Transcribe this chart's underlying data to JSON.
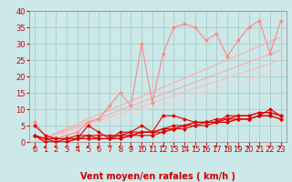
{
  "background_color": "#cce8e8",
  "grid_color": "#aacccc",
  "xlabel": "Vent moyen/en rafales ( km/h )",
  "xlabel_color": "#cc0000",
  "xlabel_fontsize": 7,
  "tick_color": "#cc0000",
  "tick_fontsize": 6,
  "ylim": [
    -6,
    42
  ],
  "ylim_plot": [
    0,
    40
  ],
  "xlim": [
    -0.5,
    23.5
  ],
  "yticks": [
    0,
    5,
    10,
    15,
    20,
    25,
    30,
    35,
    40
  ],
  "xticks": [
    0,
    1,
    2,
    3,
    4,
    5,
    6,
    7,
    8,
    9,
    10,
    11,
    12,
    13,
    14,
    15,
    16,
    17,
    18,
    19,
    20,
    21,
    22,
    23
  ],
  "series": [
    {
      "x": [
        0,
        1,
        2,
        3,
        4,
        5,
        6,
        7,
        8,
        9,
        10,
        11,
        12,
        13,
        14,
        15,
        16,
        17,
        18,
        19,
        20,
        21,
        22,
        23
      ],
      "y": [
        6,
        2,
        1,
        2,
        3,
        6,
        7,
        11,
        15,
        11,
        30,
        12,
        27,
        35,
        36,
        35,
        31,
        33,
        26,
        31,
        35,
        37,
        27,
        37
      ],
      "color": "#ff8888",
      "alpha": 1.0,
      "lw": 0.8,
      "marker": "D",
      "ms": 1.5,
      "zorder": 3
    },
    {
      "x": [
        0,
        23
      ],
      "y": [
        0,
        32
      ],
      "color": "#ffaaaa",
      "alpha": 1.0,
      "lw": 0.8,
      "marker": null,
      "ms": 0,
      "zorder": 2
    },
    {
      "x": [
        0,
        23
      ],
      "y": [
        0,
        28
      ],
      "color": "#ffaaaa",
      "alpha": 1.0,
      "lw": 0.8,
      "marker": null,
      "ms": 0,
      "zorder": 2
    },
    {
      "x": [
        0,
        23
      ],
      "y": [
        0,
        25
      ],
      "color": "#ffbbbb",
      "alpha": 1.0,
      "lw": 0.8,
      "marker": null,
      "ms": 0,
      "zorder": 2
    },
    {
      "x": [
        0,
        23
      ],
      "y": [
        0,
        22
      ],
      "color": "#ffcccc",
      "alpha": 1.0,
      "lw": 0.8,
      "marker": null,
      "ms": 0,
      "zorder": 2
    },
    {
      "x": [
        0,
        1,
        2,
        3,
        4,
        5,
        6,
        7,
        8,
        9,
        10,
        11,
        12,
        13,
        14,
        15,
        16,
        17,
        18,
        19,
        20,
        21,
        22,
        23
      ],
      "y": [
        5,
        2,
        1,
        1,
        1,
        5,
        3,
        1,
        3,
        3,
        5,
        3,
        8,
        8,
        7,
        6,
        6,
        6,
        8,
        8,
        8,
        9,
        9,
        8
      ],
      "color": "#dd0000",
      "alpha": 1.0,
      "lw": 0.8,
      "marker": "D",
      "ms": 1.5,
      "zorder": 4
    },
    {
      "x": [
        0,
        1,
        2,
        3,
        4,
        5,
        6,
        7,
        8,
        9,
        10,
        11,
        12,
        13,
        14,
        15,
        16,
        17,
        18,
        19,
        20,
        21,
        22,
        23
      ],
      "y": [
        2,
        1,
        1,
        1,
        2,
        2,
        2,
        2,
        2,
        3,
        3,
        3,
        4,
        5,
        5,
        6,
        6,
        6,
        7,
        7,
        7,
        8,
        8,
        7
      ],
      "color": "#dd0000",
      "alpha": 1.0,
      "lw": 0.8,
      "marker": "D",
      "ms": 1.5,
      "zorder": 4
    },
    {
      "x": [
        0,
        1,
        2,
        3,
        4,
        5,
        6,
        7,
        8,
        9,
        10,
        11,
        12,
        13,
        14,
        15,
        16,
        17,
        18,
        19,
        20,
        21,
        22,
        23
      ],
      "y": [
        2,
        0,
        0,
        1,
        1,
        2,
        1,
        1,
        2,
        2,
        3,
        3,
        4,
        4,
        5,
        5,
        6,
        6,
        6,
        7,
        7,
        8,
        8,
        7
      ],
      "color": "#dd0000",
      "alpha": 1.0,
      "lw": 0.8,
      "marker": "D",
      "ms": 1.5,
      "zorder": 4
    },
    {
      "x": [
        0,
        1,
        2,
        3,
        4,
        5,
        6,
        7,
        8,
        9,
        10,
        11,
        12,
        13,
        14,
        15,
        16,
        17,
        18,
        19,
        20,
        21,
        22,
        23
      ],
      "y": [
        2,
        0,
        0,
        0,
        1,
        1,
        1,
        1,
        1,
        2,
        3,
        3,
        3,
        4,
        5,
        6,
        6,
        7,
        7,
        8,
        8,
        9,
        9,
        8
      ],
      "color": "#dd0000",
      "alpha": 1.0,
      "lw": 0.8,
      "marker": "D",
      "ms": 1.5,
      "zorder": 4
    },
    {
      "x": [
        0,
        1,
        2,
        3,
        4,
        5,
        6,
        7,
        8,
        9,
        10,
        11,
        12,
        13,
        14,
        15,
        16,
        17,
        18,
        19,
        20,
        21,
        22,
        23
      ],
      "y": [
        2,
        1,
        0,
        0,
        1,
        1,
        1,
        1,
        1,
        2,
        2,
        2,
        3,
        4,
        4,
        5,
        5,
        6,
        6,
        7,
        7,
        8,
        10,
        8
      ],
      "color": "#dd0000",
      "alpha": 1.0,
      "lw": 0.8,
      "marker": "D",
      "ms": 1.5,
      "zorder": 4
    }
  ],
  "wind_arrow_angles": [
    180,
    225,
    270,
    270,
    250,
    250,
    270,
    315,
    270,
    90,
    90,
    270,
    0,
    90,
    90,
    270,
    270,
    315,
    270,
    90,
    270,
    270,
    270,
    270
  ]
}
